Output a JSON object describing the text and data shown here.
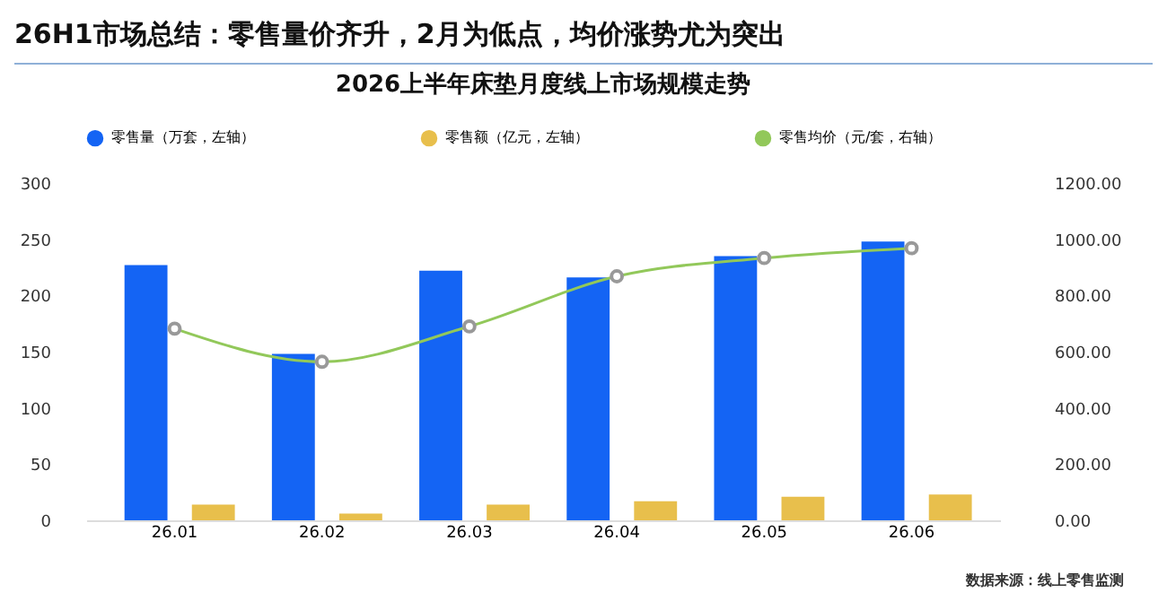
{
  "chart_data": {
    "type": "bar",
    "title": "26H1市场总结：零售量价齐升，2月为低点，均价涨势尤为突出",
    "subtitle": "2026上半年床垫月度线上市场规模走势",
    "categories": [
      "26.01",
      "26.02",
      "26.03",
      "26.04",
      "26.05",
      "26.06"
    ],
    "series": [
      {
        "name": "零售量（万套，左轴）",
        "color": "#1464f4",
        "values": [
          227,
          148,
          222,
          216,
          235,
          248
        ]
      },
      {
        "name": "零售额（亿元，左轴）",
        "color": "#e8bf4c",
        "values": [
          14,
          6,
          14,
          17,
          21,
          23
        ]
      },
      {
        "name": "零售均价（元/套，右轴）",
        "color": "#92c85a",
        "type": "line",
        "axis": "y2",
        "marker": "circle",
        "values": [
          682,
          564,
          690,
          868,
          933,
          968
        ]
      }
    ],
    "ylim": [
      0,
      300
    ],
    "yticks": [
      0,
      50,
      100,
      150,
      200,
      250,
      300
    ],
    "y2lim": [
      0,
      1200
    ],
    "y2ticks": [
      {
        "value": 0,
        "label": "0.00"
      },
      {
        "value": 200,
        "label": "200.00"
      },
      {
        "value": 400,
        "label": "400.00"
      },
      {
        "value": 600,
        "label": "600.00"
      },
      {
        "value": 800,
        "label": "800.00"
      },
      {
        "value": 1000,
        "label": "1000.00"
      },
      {
        "value": 1200,
        "label": "1200.00"
      }
    ],
    "legend": "top",
    "annotations": [
      "数据来源：线上零售监测"
    ]
  }
}
